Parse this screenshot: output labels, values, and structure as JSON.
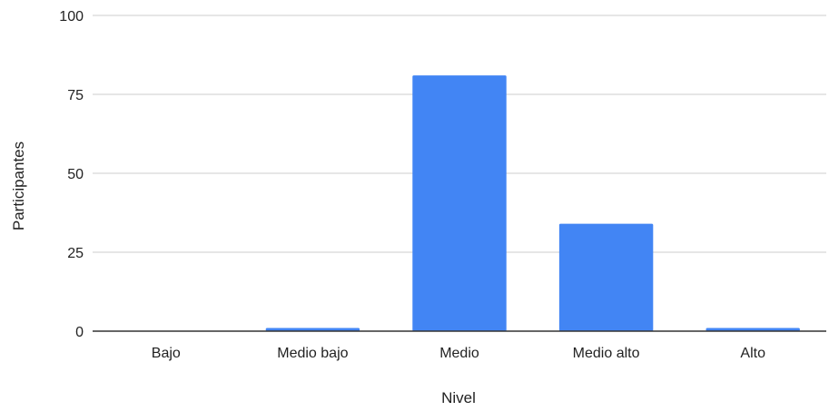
{
  "chart_data": {
    "type": "bar",
    "title": "",
    "xlabel": "Nivel",
    "ylabel": "Participantes",
    "categories": [
      "Bajo",
      "Medio bajo",
      "Medio",
      "Medio alto",
      "Alto"
    ],
    "series": [
      {
        "values": [
          0,
          1,
          81,
          34,
          1
        ]
      }
    ],
    "ylim": [
      0,
      100
    ],
    "yticks": [
      "0",
      "25",
      "50",
      "75",
      "100"
    ],
    "grid": true,
    "legend": "none",
    "colors": {
      "bar": "#4285f4",
      "grid": "#cccccc",
      "axis": "#333333"
    }
  }
}
